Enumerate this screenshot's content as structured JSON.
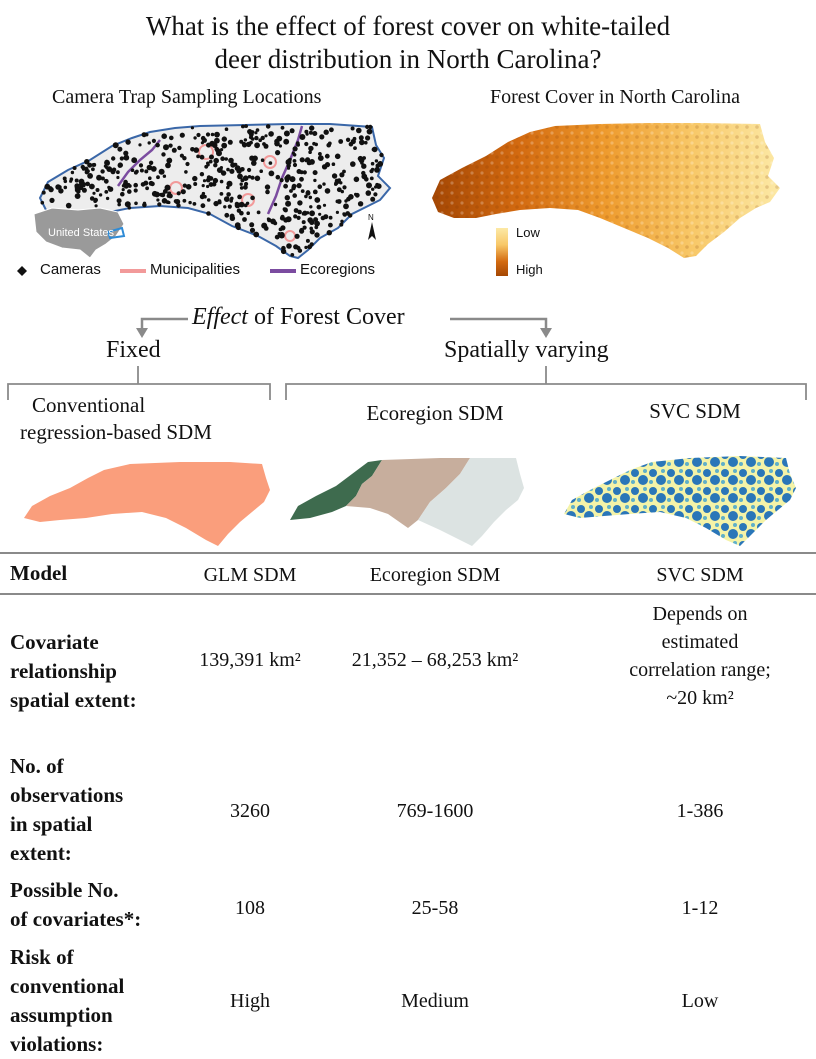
{
  "title_line1": "What is the effect of forest cover on white-tailed",
  "title_line2": "deer distribution  in North Carolina?",
  "left_map_title": "Camera Trap Sampling Locations",
  "right_map_title": "Forest Cover in North Carolina",
  "inset_label": "United States",
  "north_label": "N",
  "legend": {
    "cameras": "Cameras",
    "municipalities": "Municipalities",
    "ecoregions": "Ecoregions",
    "forest_low": "Low",
    "forest_high": "High"
  },
  "effect_heading": {
    "italic": "Effect",
    "rest": " of Forest Cover"
  },
  "branch_fixed": "Fixed",
  "branch_varying": "Spatially varying",
  "models": {
    "conventional_line1": "Conventional",
    "conventional_line2": "regression-based SDM",
    "ecoregion": "Ecoregion SDM",
    "svc": "SVC SDM"
  },
  "colors": {
    "conventional_fill": "#FA9E7C",
    "eco_dark": "#3E6B4E",
    "eco_tan": "#C7AE9D",
    "eco_light": "#DCE3E2",
    "svc_blue": "#2A76B8",
    "svc_yellow": "#F4F3A8",
    "nc_outline": "#3A67A8",
    "forest_low": "#FCE9A6",
    "forest_high": "#A44704"
  },
  "table": {
    "headers": [
      "Model",
      "GLM SDM",
      "Ecoregion SDM",
      "SVC SDM"
    ],
    "rows": [
      {
        "label_lines": [
          "Covariate",
          "relationship",
          "spatial extent:"
        ],
        "glm": "139,391 km²",
        "eco": "21,352 – 68,253 km²",
        "svc_lines": [
          "Depends on",
          "estimated",
          "correlation range;",
          "~20 km²"
        ]
      },
      {
        "label_lines": [
          "No. of",
          "observations",
          "in spatial",
          "extent:"
        ],
        "glm": "3260",
        "eco": "769-1600",
        "svc_lines": [
          "1-386"
        ]
      },
      {
        "label_lines": [
          "Possible No.",
          "of covariates*:"
        ],
        "glm": "108",
        "eco": "25-58",
        "svc_lines": [
          "1-12"
        ]
      },
      {
        "label_lines": [
          "Risk of",
          "conventional",
          "assumption",
          "violations:"
        ],
        "glm": "High",
        "eco": "Medium",
        "svc_lines": [
          "Low"
        ]
      }
    ]
  }
}
